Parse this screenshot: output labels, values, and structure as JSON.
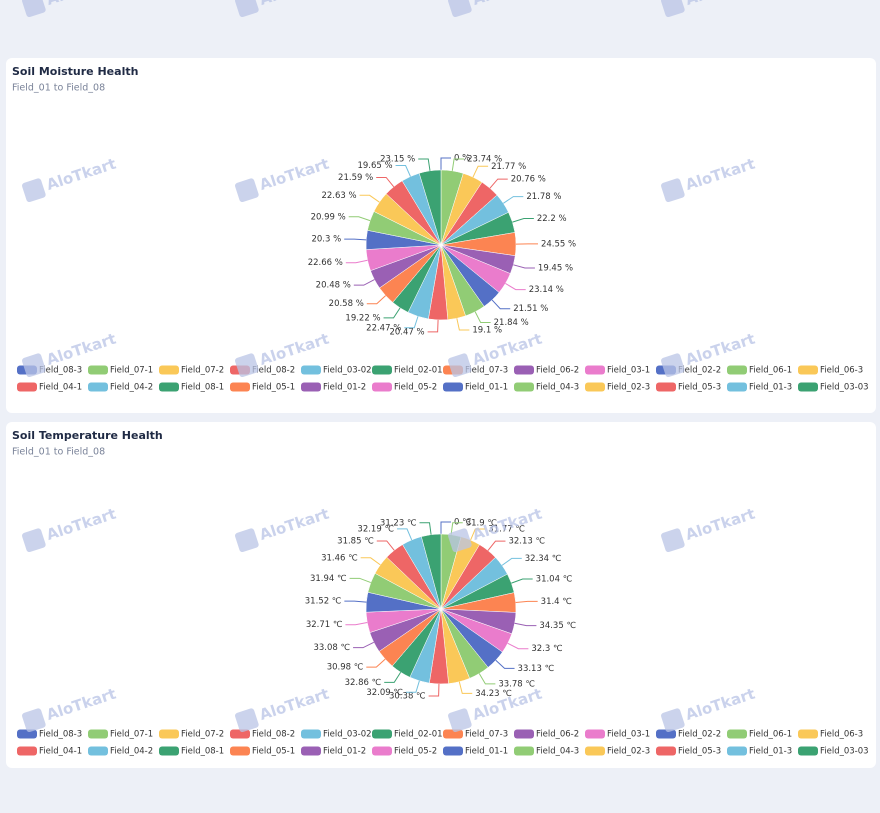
{
  "watermark": "AloTkart",
  "chart_data": [
    {
      "type": "pie",
      "title": "Soil Moisture Health",
      "subtitle": "Field_01 to Field_08",
      "categories": [
        "Field_08-3",
        "Field_07-1",
        "Field_07-2",
        "Field_08-2",
        "Field_03-02",
        "Field_02-01",
        "Field_07-3",
        "Field_06-2",
        "Field_03-1",
        "Field_02-2",
        "Field_06-1",
        "Field_06-3",
        "Field_04-1",
        "Field_04-2",
        "Field_08-1",
        "Field_05-1",
        "Field_01-2",
        "Field_05-2",
        "Field_01-1",
        "Field_04-3",
        "Field_02-3",
        "Field_05-3",
        "Field_01-3",
        "Field_03-03"
      ],
      "values": [
        0,
        23.74,
        21.77,
        20.76,
        21.78,
        22.2,
        24.55,
        19.45,
        23.14,
        21.51,
        21.84,
        19.1,
        20.47,
        22.47,
        19.22,
        20.58,
        20.48,
        22.66,
        20.3,
        20.99,
        22.63,
        21.59,
        19.65,
        23.15
      ],
      "value_labels": [
        "0 %",
        "23.74 %",
        "21.77 %",
        "20.76 %",
        "21.78 %",
        "22.2 %",
        "24.55 %",
        "19.45 %",
        "23.14 %",
        "21.51 %",
        "21.84 %",
        "19.1 %",
        "20.47 %",
        "22.47 %",
        "19.22 %",
        "20.58 %",
        "20.48 %",
        "22.66 %",
        "20.3 %",
        "20.99 %",
        "22.63 %",
        "21.59 %",
        "19.65 %",
        "23.15 %"
      ],
      "colors": [
        "#5470c6",
        "#91cc75",
        "#fac858",
        "#ee6666",
        "#73c0de",
        "#3ba272",
        "#fc8452",
        "#9a60b4",
        "#ea7ccc",
        "#5470c6",
        "#91cc75",
        "#fac858",
        "#ee6666",
        "#73c0de",
        "#3ba272",
        "#fc8452",
        "#9a60b4",
        "#ea7ccc",
        "#5470c6",
        "#91cc75",
        "#fac858",
        "#ee6666",
        "#73c0de",
        "#3ba272"
      ]
    },
    {
      "type": "pie",
      "title": "Soil Temperature Health",
      "subtitle": "Field_01 to Field_08",
      "categories": [
        "Field_08-3",
        "Field_07-1",
        "Field_07-2",
        "Field_08-2",
        "Field_03-02",
        "Field_02-01",
        "Field_07-3",
        "Field_06-2",
        "Field_03-1",
        "Field_02-2",
        "Field_06-1",
        "Field_06-3",
        "Field_04-1",
        "Field_04-2",
        "Field_08-1",
        "Field_05-1",
        "Field_01-2",
        "Field_05-2",
        "Field_01-1",
        "Field_04-3",
        "Field_02-3",
        "Field_05-3",
        "Field_01-3",
        "Field_03-03"
      ],
      "values": [
        0,
        31.9,
        31.77,
        32.13,
        32.34,
        31.04,
        31.4,
        34.35,
        32.3,
        33.13,
        33.78,
        34.23,
        30.38,
        32.09,
        32.86,
        30.98,
        33.08,
        32.71,
        31.52,
        31.94,
        31.46,
        31.85,
        32.19,
        31.23
      ],
      "value_labels": [
        "0 ℃",
        "31.9 ℃",
        "31.77 ℃",
        "32.13 ℃",
        "32.34 ℃",
        "31.04 ℃",
        "31.4 ℃",
        "34.35 ℃",
        "32.3 ℃",
        "33.13 ℃",
        "33.78 ℃",
        "34.23 ℃",
        "30.38 ℃",
        "32.09 ℃",
        "32.86 ℃",
        "30.98 ℃",
        "33.08 ℃",
        "32.71 ℃",
        "31.52 ℃",
        "31.94 ℃",
        "31.46 ℃",
        "31.85 ℃",
        "32.19 ℃",
        "31.23 ℃"
      ],
      "colors": [
        "#5470c6",
        "#91cc75",
        "#fac858",
        "#ee6666",
        "#73c0de",
        "#3ba272",
        "#fc8452",
        "#9a60b4",
        "#ea7ccc",
        "#5470c6",
        "#91cc75",
        "#fac858",
        "#ee6666",
        "#73c0de",
        "#3ba272",
        "#fc8452",
        "#9a60b4",
        "#ea7ccc",
        "#5470c6",
        "#91cc75",
        "#fac858",
        "#ee6666",
        "#73c0de",
        "#3ba272"
      ]
    }
  ]
}
